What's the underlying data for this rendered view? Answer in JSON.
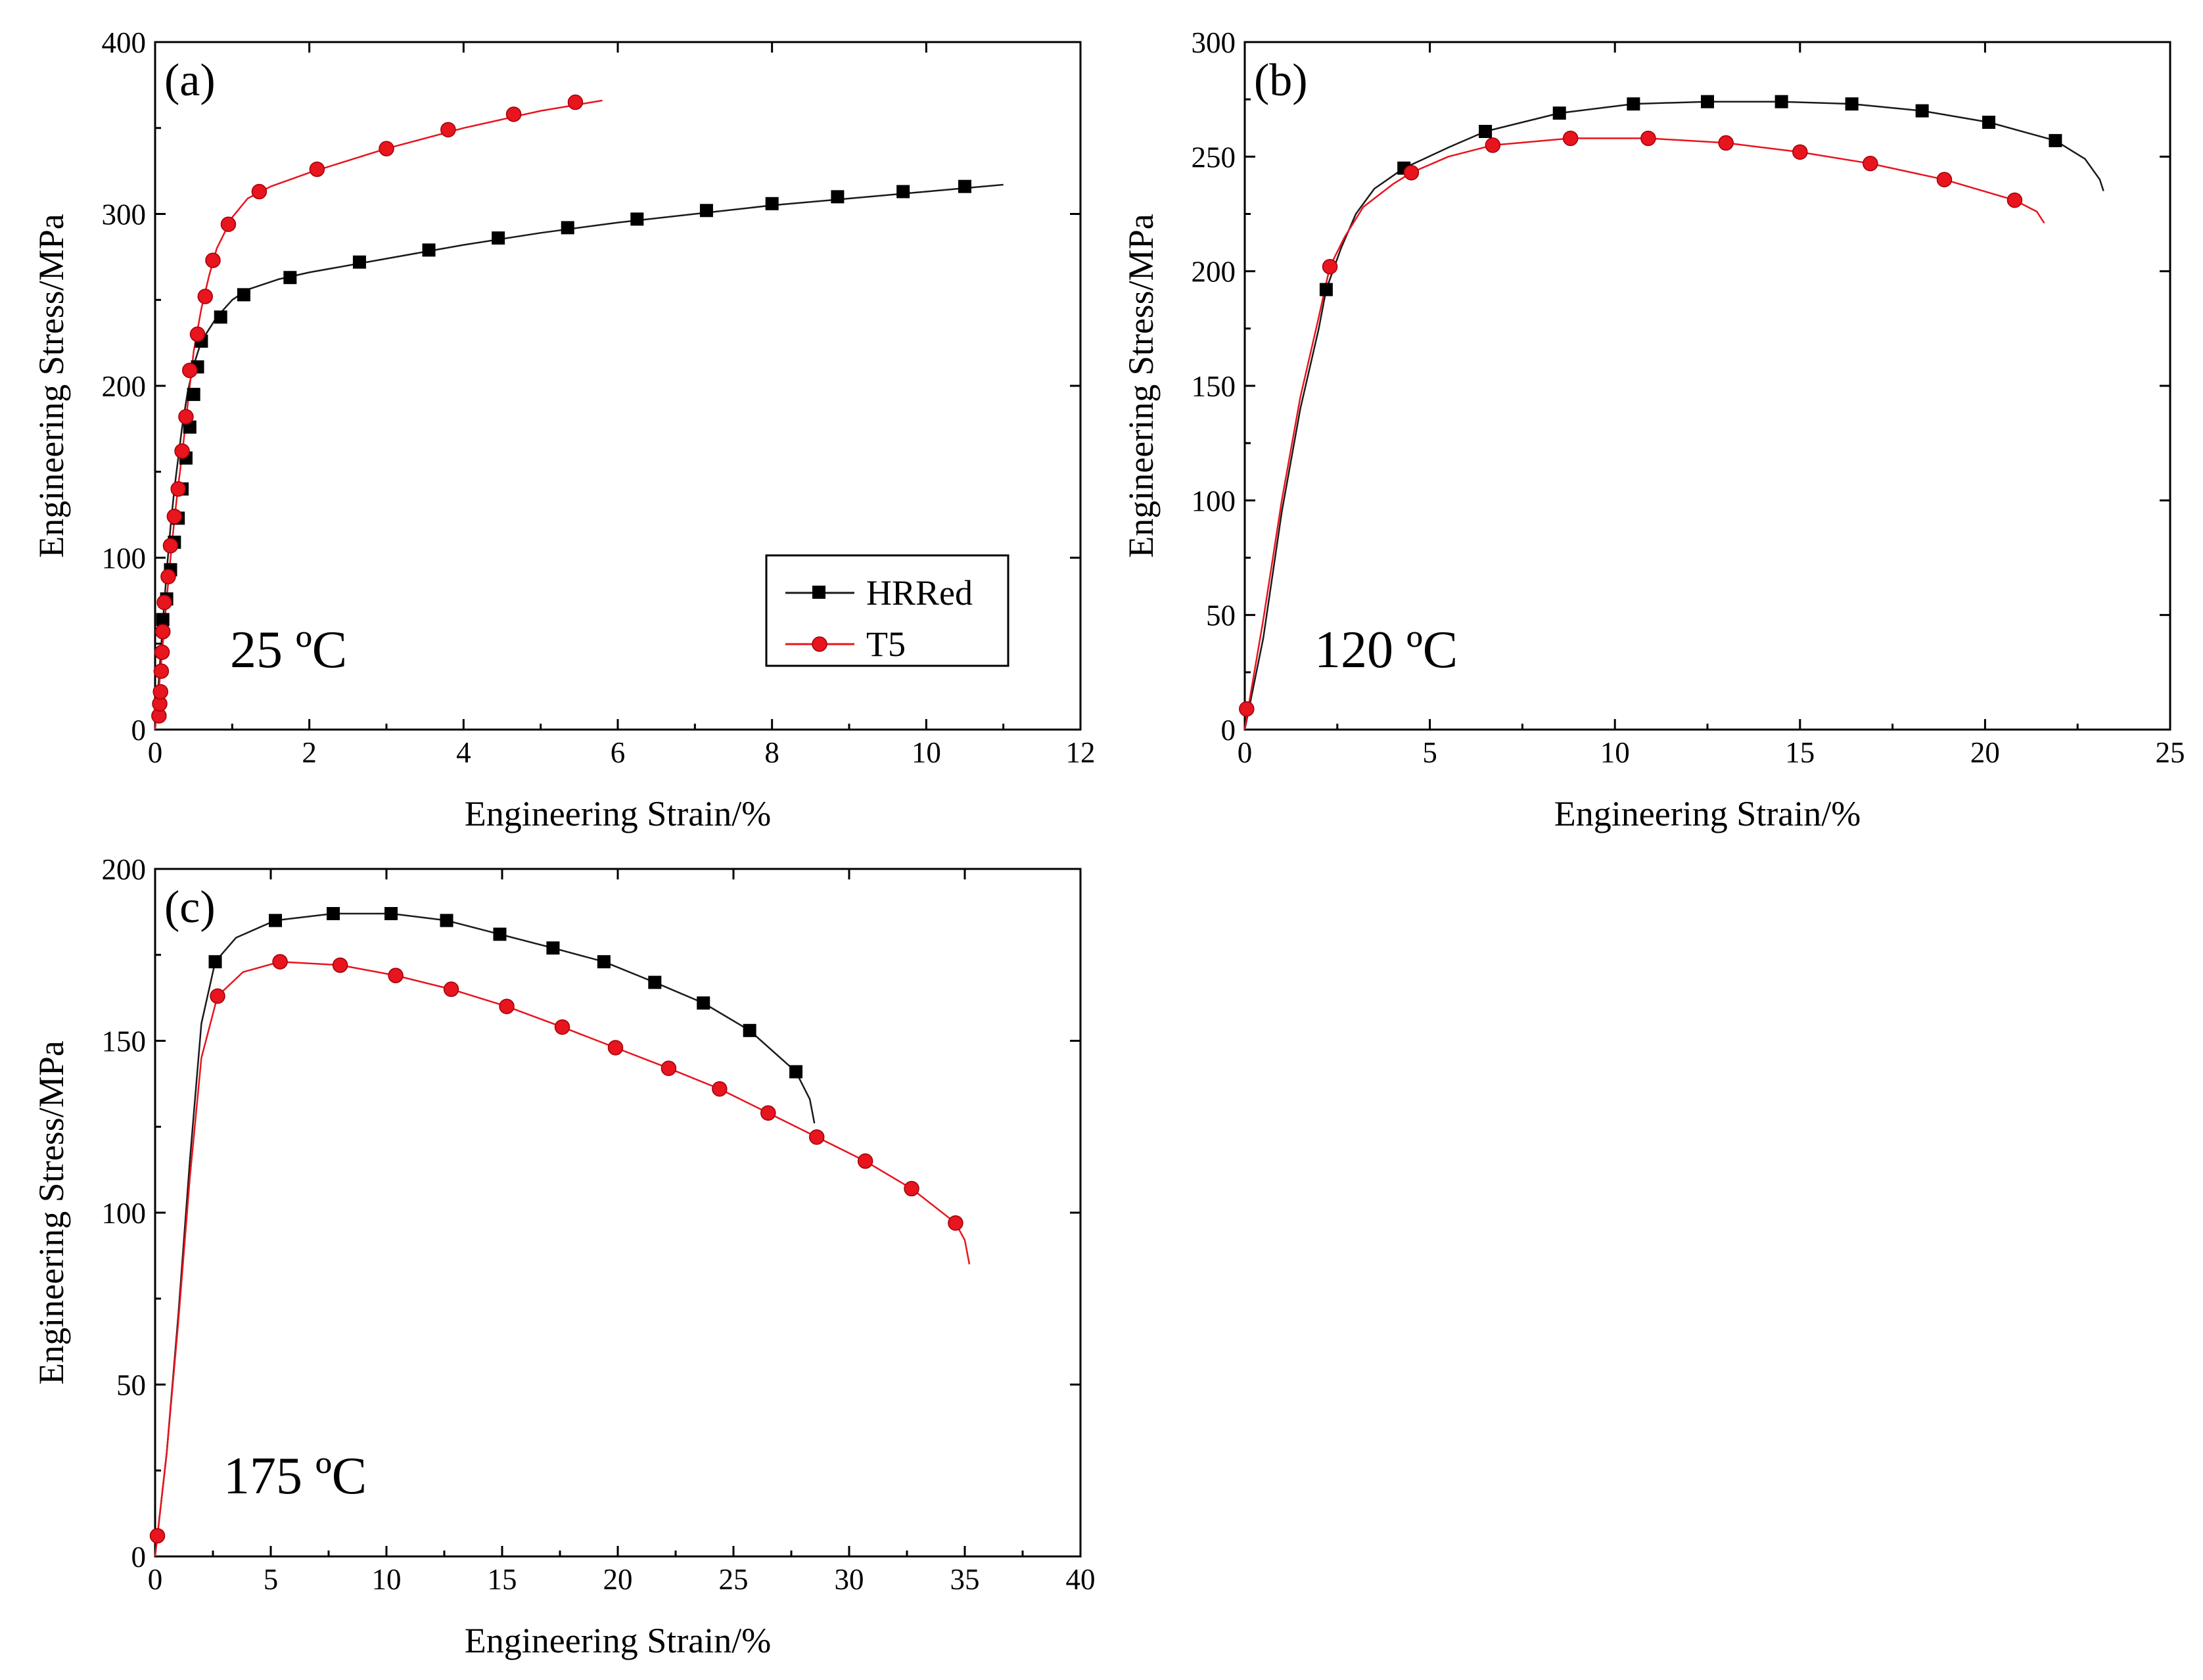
{
  "figure": {
    "legend": {
      "entries": [
        {
          "name": "HRRed",
          "color": "#1a1a1a",
          "marker": "square"
        },
        {
          "name": "T5",
          "color": "#e8141e",
          "marker": "circle"
        }
      ]
    }
  },
  "chart_data": [
    {
      "type": "line",
      "panel_label": "(a)",
      "temperature_label": "25 ºC",
      "xlabel": "Engineering Strain/%",
      "ylabel": "Engineering Stress/MPa",
      "xlim": [
        0,
        12
      ],
      "ylim": [
        0,
        400
      ],
      "xticks": [
        "0",
        "2",
        "4",
        "6",
        "8",
        "10",
        "12"
      ],
      "yticks": [
        "0",
        "100",
        "200",
        "300",
        "400"
      ],
      "legend_position": "lower-right",
      "series": [
        {
          "name": "HRRed",
          "line": [
            [
              0,
              0
            ],
            [
              0.05,
              30
            ],
            [
              0.1,
              62
            ],
            [
              0.15,
              92
            ],
            [
              0.2,
              118
            ],
            [
              0.25,
              140
            ],
            [
              0.3,
              158
            ],
            [
              0.35,
              176
            ],
            [
              0.42,
              196
            ],
            [
              0.5,
              212
            ],
            [
              0.6,
              226
            ],
            [
              0.8,
              240
            ],
            [
              1.0,
              250
            ],
            [
              1.2,
              256
            ],
            [
              1.6,
              262
            ],
            [
              2.0,
              266
            ],
            [
              3.0,
              274
            ],
            [
              4.0,
              282
            ],
            [
              5.0,
              289
            ],
            [
              6.0,
              295
            ],
            [
              7.0,
              300
            ],
            [
              8.0,
              305
            ],
            [
              9.0,
              309
            ],
            [
              10.0,
              313
            ],
            [
              11.0,
              317
            ]
          ],
          "markers": [
            [
              0.1,
              64
            ],
            [
              0.15,
              76
            ],
            [
              0.2,
              93
            ],
            [
              0.25,
              109
            ],
            [
              0.3,
              123
            ],
            [
              0.35,
              140
            ],
            [
              0.4,
              158
            ],
            [
              0.45,
              176
            ],
            [
              0.5,
              195
            ],
            [
              0.55,
              211
            ],
            [
              0.6,
              226
            ],
            [
              0.85,
              240
            ],
            [
              1.15,
              253
            ],
            [
              1.75,
              263
            ],
            [
              2.65,
              272
            ],
            [
              3.55,
              279
            ],
            [
              4.45,
              286
            ],
            [
              5.35,
              292
            ],
            [
              6.25,
              297
            ],
            [
              7.15,
              302
            ],
            [
              8.0,
              306
            ],
            [
              8.85,
              310
            ],
            [
              9.7,
              313
            ],
            [
              10.5,
              316
            ]
          ]
        },
        {
          "name": "T5",
          "line": [
            [
              0,
              0
            ],
            [
              0.05,
              24
            ],
            [
              0.1,
              50
            ],
            [
              0.15,
              76
            ],
            [
              0.2,
              100
            ],
            [
              0.25,
              122
            ],
            [
              0.3,
              142
            ],
            [
              0.35,
              160
            ],
            [
              0.4,
              180
            ],
            [
              0.45,
              200
            ],
            [
              0.5,
              220
            ],
            [
              0.6,
              245
            ],
            [
              0.7,
              264
            ],
            [
              0.8,
              280
            ],
            [
              1.0,
              298
            ],
            [
              1.2,
              309
            ],
            [
              1.5,
              316
            ],
            [
              2.0,
              324
            ],
            [
              3.0,
              338
            ],
            [
              4.0,
              350
            ],
            [
              5.0,
              360
            ],
            [
              5.8,
              366
            ]
          ],
          "markers": [
            [
              0.05,
              8
            ],
            [
              0.06,
              15
            ],
            [
              0.07,
              22
            ],
            [
              0.08,
              34
            ],
            [
              0.09,
              45
            ],
            [
              0.1,
              57
            ],
            [
              0.12,
              74
            ],
            [
              0.17,
              89
            ],
            [
              0.2,
              107
            ],
            [
              0.25,
              124
            ],
            [
              0.3,
              140
            ],
            [
              0.35,
              162
            ],
            [
              0.4,
              182
            ],
            [
              0.45,
              209
            ],
            [
              0.55,
              230
            ],
            [
              0.65,
              252
            ],
            [
              0.75,
              273
            ],
            [
              0.95,
              294
            ],
            [
              1.35,
              313
            ],
            [
              2.1,
              326
            ],
            [
              3.0,
              338
            ],
            [
              3.8,
              349
            ],
            [
              4.65,
              358
            ],
            [
              5.45,
              365
            ]
          ]
        }
      ]
    },
    {
      "type": "line",
      "panel_label": "(b)",
      "temperature_label": "120 ºC",
      "xlabel": "Engineering Strain/%",
      "ylabel": "Engineering Stress/MPa",
      "xlim": [
        0,
        25
      ],
      "ylim": [
        0,
        300
      ],
      "xticks": [
        "0",
        "5",
        "10",
        "15",
        "20",
        "25"
      ],
      "yticks": [
        "0",
        "50",
        "100",
        "150",
        "200",
        "250",
        "300"
      ],
      "series": [
        {
          "name": "HRRed",
          "line": [
            [
              0,
              0
            ],
            [
              0.5,
              40
            ],
            [
              1.0,
              95
            ],
            [
              1.5,
              140
            ],
            [
              2.0,
              175
            ],
            [
              2.2,
              192
            ],
            [
              2.6,
              210
            ],
            [
              3.0,
              225
            ],
            [
              3.5,
              236
            ],
            [
              4.3,
              245
            ],
            [
              5.5,
              254
            ],
            [
              6.5,
              261
            ],
            [
              8.5,
              269
            ],
            [
              10.5,
              273
            ],
            [
              12.5,
              274
            ],
            [
              14.5,
              274
            ],
            [
              16.4,
              273
            ],
            [
              18.3,
              270
            ],
            [
              20.1,
              265
            ],
            [
              21.9,
              257
            ],
            [
              22.7,
              249
            ],
            [
              23.1,
              240
            ],
            [
              23.2,
              235
            ]
          ],
          "markers": [
            [
              2.2,
              192
            ],
            [
              4.3,
              245
            ],
            [
              6.5,
              261
            ],
            [
              8.5,
              269
            ],
            [
              10.5,
              273
            ],
            [
              12.5,
              274
            ],
            [
              14.5,
              274
            ],
            [
              16.4,
              273
            ],
            [
              18.3,
              270
            ],
            [
              20.1,
              265
            ],
            [
              21.9,
              257
            ]
          ]
        },
        {
          "name": "T5",
          "line": [
            [
              0,
              0
            ],
            [
              0.1,
              10
            ],
            [
              0.5,
              48
            ],
            [
              1.0,
              100
            ],
            [
              1.5,
              145
            ],
            [
              2.0,
              180
            ],
            [
              2.3,
              202
            ],
            [
              2.7,
              215
            ],
            [
              3.2,
              228
            ],
            [
              4.0,
              238
            ],
            [
              4.5,
              243
            ],
            [
              5.5,
              250
            ],
            [
              6.7,
              255
            ],
            [
              8.8,
              258
            ],
            [
              10.9,
              258
            ],
            [
              13.0,
              256
            ],
            [
              15.0,
              252
            ],
            [
              16.9,
              247
            ],
            [
              18.9,
              240
            ],
            [
              20.8,
              231
            ],
            [
              21.4,
              226
            ],
            [
              21.6,
              221
            ]
          ],
          "markers": [
            [
              0.05,
              9
            ],
            [
              2.3,
              202
            ],
            [
              4.5,
              243
            ],
            [
              6.7,
              255
            ],
            [
              8.8,
              258
            ],
            [
              10.9,
              258
            ],
            [
              13.0,
              256
            ],
            [
              15.0,
              252
            ],
            [
              16.9,
              247
            ],
            [
              18.9,
              240
            ],
            [
              20.8,
              231
            ]
          ]
        }
      ]
    },
    {
      "type": "line",
      "panel_label": "(c)",
      "temperature_label": "175 ºC",
      "xlabel": "Engineering Strain/%",
      "ylabel": "Engineering Stress/MPa",
      "xlim": [
        0,
        40
      ],
      "ylim": [
        0,
        200
      ],
      "xticks": [
        "0",
        "5",
        "10",
        "15",
        "20",
        "25",
        "30",
        "35",
        "40"
      ],
      "yticks": [
        "0",
        "50",
        "100",
        "150",
        "200"
      ],
      "series": [
        {
          "name": "HRRed",
          "line": [
            [
              0,
              0
            ],
            [
              0.5,
              30
            ],
            [
              1.0,
              70
            ],
            [
              1.5,
              115
            ],
            [
              2.0,
              155
            ],
            [
              2.6,
              173
            ],
            [
              3.5,
              180
            ],
            [
              5.2,
              185
            ],
            [
              7.7,
              187
            ],
            [
              10.2,
              187
            ],
            [
              12.6,
              185
            ],
            [
              14.9,
              181
            ],
            [
              17.2,
              177
            ],
            [
              19.4,
              173
            ],
            [
              21.6,
              167
            ],
            [
              23.7,
              161
            ],
            [
              25.7,
              153
            ],
            [
              27.7,
              141
            ],
            [
              28.3,
              133
            ],
            [
              28.5,
              126
            ]
          ],
          "markers": [
            [
              2.6,
              173
            ],
            [
              5.2,
              185
            ],
            [
              7.7,
              187
            ],
            [
              10.2,
              187
            ],
            [
              12.6,
              185
            ],
            [
              14.9,
              181
            ],
            [
              17.2,
              177
            ],
            [
              19.4,
              173
            ],
            [
              21.6,
              167
            ],
            [
              23.7,
              161
            ],
            [
              25.7,
              153
            ],
            [
              27.7,
              141
            ]
          ]
        },
        {
          "name": "T5",
          "line": [
            [
              0,
              0
            ],
            [
              0.1,
              6
            ],
            [
              0.5,
              30
            ],
            [
              1.0,
              68
            ],
            [
              1.5,
              110
            ],
            [
              2.0,
              145
            ],
            [
              2.7,
              163
            ],
            [
              3.8,
              170
            ],
            [
              5.4,
              173
            ],
            [
              8.0,
              172
            ],
            [
              10.4,
              169
            ],
            [
              12.8,
              165
            ],
            [
              15.2,
              160
            ],
            [
              17.6,
              154
            ],
            [
              19.9,
              148
            ],
            [
              22.2,
              142
            ],
            [
              24.4,
              136
            ],
            [
              26.5,
              129
            ],
            [
              28.6,
              122
            ],
            [
              30.7,
              115
            ],
            [
              32.7,
              107
            ],
            [
              34.6,
              97
            ],
            [
              35.0,
              92
            ],
            [
              35.2,
              85
            ]
          ],
          "markers": [
            [
              0.1,
              6
            ],
            [
              2.7,
              163
            ],
            [
              5.4,
              173
            ],
            [
              8.0,
              172
            ],
            [
              10.4,
              169
            ],
            [
              12.8,
              165
            ],
            [
              15.2,
              160
            ],
            [
              17.6,
              154
            ],
            [
              19.9,
              148
            ],
            [
              22.2,
              142
            ],
            [
              24.4,
              136
            ],
            [
              26.5,
              129
            ],
            [
              28.6,
              122
            ],
            [
              30.7,
              115
            ],
            [
              32.7,
              107
            ],
            [
              34.6,
              97
            ]
          ]
        }
      ]
    }
  ]
}
